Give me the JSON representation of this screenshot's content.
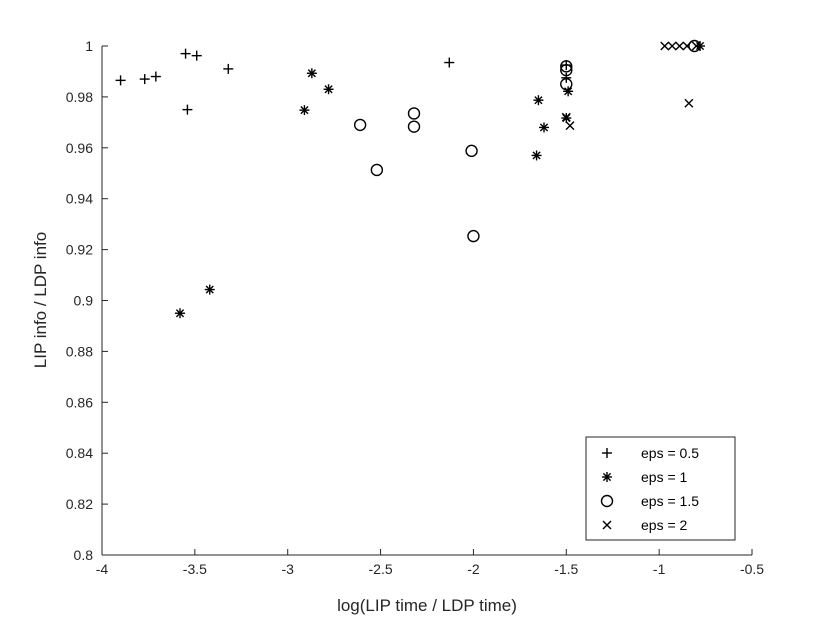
{
  "chart_data": {
    "type": "scatter",
    "title": "",
    "xlabel": "log(LIP time / LDP time)",
    "ylabel": "LIP info / LDP info",
    "xlim": [
      -4,
      -0.5
    ],
    "ylim": [
      0.8,
      1.0
    ],
    "xticks": [
      "-4",
      "-3.5",
      "-3",
      "-2.5",
      "-2",
      "-1.5",
      "-1",
      "-0.5"
    ],
    "yticks": [
      "0.8",
      "0.82",
      "0.84",
      "0.86",
      "0.88",
      "0.9",
      "0.92",
      "0.94",
      "0.96",
      "0.98",
      "1"
    ],
    "grid": false,
    "legend_position": "bottom-right",
    "series": [
      {
        "name": "eps = 0.5",
        "marker": "plus",
        "color": "#000000",
        "points": [
          [
            -3.9,
            0.9865
          ],
          [
            -3.77,
            0.987
          ],
          [
            -3.71,
            0.988
          ],
          [
            -3.55,
            0.997
          ],
          [
            -3.49,
            0.9962
          ],
          [
            -3.54,
            0.975
          ],
          [
            -3.32,
            0.991
          ],
          [
            -2.13,
            0.9935
          ],
          [
            -1.5,
            0.9875
          ],
          [
            -1.5,
            0.9925
          ]
        ]
      },
      {
        "name": "eps = 1",
        "marker": "asterisk",
        "color": "#000000",
        "points": [
          [
            -3.58,
            0.895
          ],
          [
            -3.42,
            0.9043
          ],
          [
            -2.91,
            0.9748
          ],
          [
            -2.87,
            0.9893
          ],
          [
            -2.78,
            0.983
          ],
          [
            -1.65,
            0.9787
          ],
          [
            -1.62,
            0.968
          ],
          [
            -1.66,
            0.957
          ],
          [
            -1.49,
            0.9822
          ],
          [
            -1.5,
            0.9717
          ],
          [
            -0.78,
            1.0
          ]
        ]
      },
      {
        "name": "eps = 1.5",
        "marker": "circle",
        "color": "#000000",
        "points": [
          [
            -2.61,
            0.969
          ],
          [
            -2.52,
            0.9513
          ],
          [
            -2.32,
            0.9735
          ],
          [
            -2.32,
            0.9683
          ],
          [
            -2.01,
            0.9588
          ],
          [
            -2.0,
            0.9253
          ],
          [
            -1.5,
            0.992
          ],
          [
            -1.5,
            0.9905
          ],
          [
            -1.5,
            0.985
          ],
          [
            -0.81,
            1.0
          ]
        ]
      },
      {
        "name": "eps = 2",
        "marker": "cross",
        "color": "#000000",
        "points": [
          [
            -0.97,
            1.0
          ],
          [
            -0.93,
            1.0
          ],
          [
            -0.89,
            1.0
          ],
          [
            -0.85,
            1.0
          ],
          [
            -0.8,
            1.0
          ],
          [
            -0.84,
            0.9775
          ],
          [
            -1.5,
            0.972
          ],
          [
            -1.48,
            0.9687
          ]
        ]
      }
    ]
  }
}
